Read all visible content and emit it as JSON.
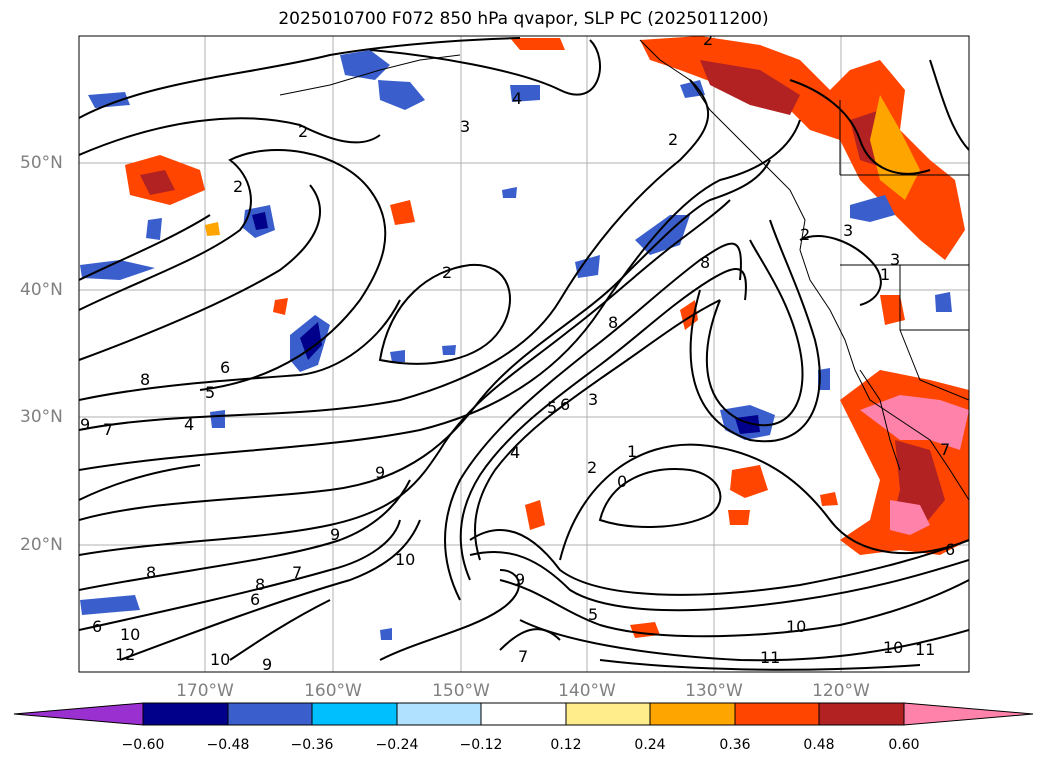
{
  "title": "2025010700 F072 850 hPa qvapor, SLP PC (2025011200)",
  "latitude_labels": [
    "50°N",
    "40°N",
    "30°N",
    "20°N"
  ],
  "longitude_labels": [
    "170°W",
    "160°W",
    "150°W",
    "140°W",
    "130°W",
    "120°W"
  ],
  "colorbar": {
    "tick_labels": [
      "−0.60",
      "−0.48",
      "−0.36",
      "−0.24",
      "−0.12",
      "0.12",
      "0.24",
      "0.36",
      "0.48",
      "0.60"
    ],
    "colors": [
      "#9b30d0",
      "#00008b",
      "#3a5fcd",
      "#00bfff",
      "#b0e2ff",
      "#ffffff",
      "#ffec8b",
      "#ffa500",
      "#ff4500",
      "#b22222",
      "#ff82ab"
    ]
  },
  "contour_labels": [
    "2",
    "4",
    "3",
    "2",
    "2",
    "2",
    "6",
    "5",
    "8",
    "4",
    "9",
    "7",
    "8",
    "6",
    "10",
    "9",
    "8",
    "10",
    "7",
    "6",
    "12",
    "9",
    "10",
    "9",
    "7",
    "5",
    "4",
    "2",
    "1",
    "0",
    "3",
    "5",
    "6",
    "8",
    "9",
    "10",
    "11",
    "10",
    "11",
    "3",
    "2",
    "3",
    "1",
    "2",
    "7",
    "6",
    "8"
  ]
}
